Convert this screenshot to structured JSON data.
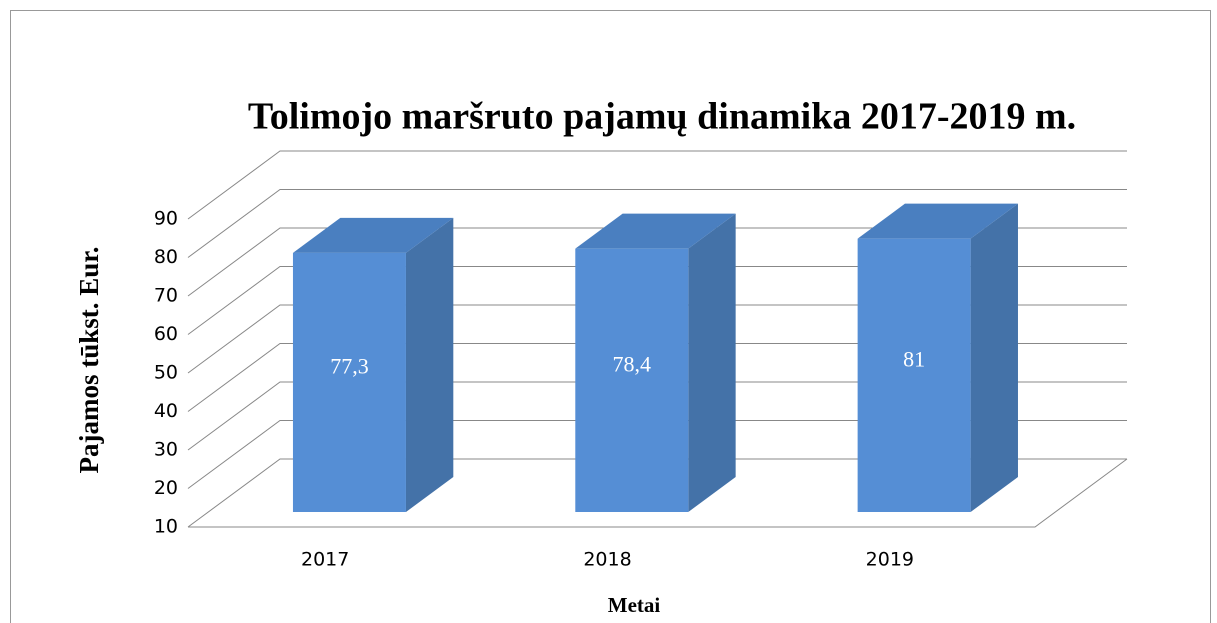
{
  "chart_data": {
    "type": "bar3d",
    "title": "Tolimojo maršruto pajamų dinamika 2017-2019 m.",
    "x_label": "Metai",
    "y_label": "Pajamos tūkst. Eur.",
    "categories": [
      "2017",
      "2018",
      "2019"
    ],
    "values": [
      77.3,
      78.4,
      81
    ],
    "value_labels": [
      "77,3",
      "78,4",
      "81"
    ],
    "color": "#558ed5",
    "ylim": [
      10,
      90
    ],
    "yticks": [
      10,
      20,
      30,
      40,
      50,
      60,
      70,
      80,
      90
    ],
    "grid": true
  }
}
